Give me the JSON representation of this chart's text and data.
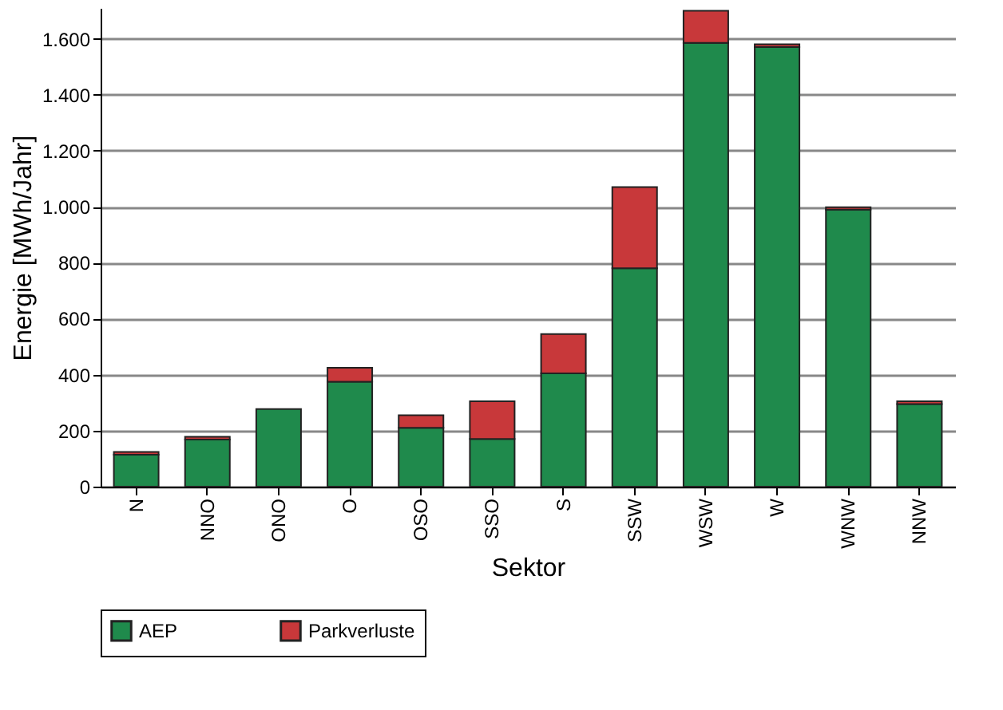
{
  "chart_data": {
    "type": "bar",
    "stacked": true,
    "xlabel": "Sektor",
    "ylabel": "Energie [MWh/Jahr]",
    "categories": [
      "N",
      "NNO",
      "ONO",
      "O",
      "OSO",
      "SSO",
      "S",
      "SSW",
      "WSW",
      "W",
      "WNW",
      "NNW"
    ],
    "series": [
      {
        "name": "AEP",
        "color": "#1f8a4c",
        "values": [
          114,
          168,
          277,
          375,
          210,
          170,
          405,
          780,
          1585,
          1570,
          990,
          295
        ]
      },
      {
        "name": "Parkverluste",
        "color": "#c8383a",
        "values": [
          10,
          10,
          null,
          50,
          45,
          135,
          140,
          290,
          115,
          10,
          8,
          10
        ]
      }
    ],
    "ylim": [
      0,
      1710
    ],
    "yticks": [
      0,
      200,
      400,
      600,
      800,
      {
        "value": 1000,
        "label": "1.000"
      },
      {
        "value": 1200,
        "label": "1.200"
      },
      {
        "value": 1400,
        "label": "1.400"
      },
      {
        "value": 1600,
        "label": "1.600"
      }
    ],
    "grid": "y",
    "legend": "bottom"
  }
}
